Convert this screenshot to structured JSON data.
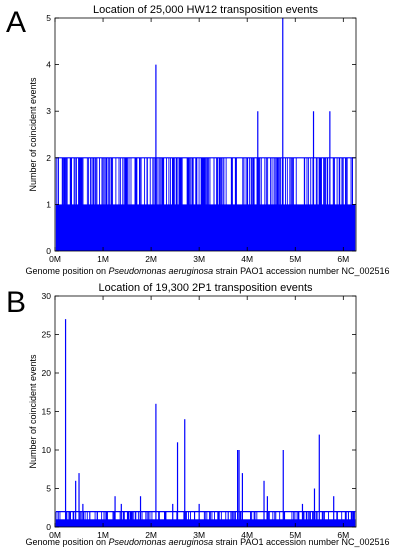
{
  "chart_data": [
    {
      "panel": "A",
      "type": "bar",
      "title": "Location of 25,000 HW12 transposition events",
      "xlabel_parts": [
        "Genome position on ",
        "Pseudomonas aeruginosa",
        " strain PAO1 accession number NC_002516"
      ],
      "ylabel": "Number of coincident events",
      "xlim": [
        0,
        6.264
      ],
      "ylim": [
        0,
        5
      ],
      "xticks": [
        0,
        1,
        2,
        3,
        4,
        5,
        6
      ],
      "xtick_labels": [
        "0M",
        "1M",
        "2M",
        "3M",
        "4M",
        "5M",
        "6M"
      ],
      "yticks": [
        0,
        1,
        2,
        3,
        4,
        5
      ],
      "baseline_fill": {
        "x": [
          0.02,
          6.25
        ],
        "y": 1
      },
      "peaks": [
        {
          "x": 2.1,
          "y": 4
        },
        {
          "x": 4.22,
          "y": 3
        },
        {
          "x": 4.74,
          "y": 5
        },
        {
          "x": 5.38,
          "y": 3
        },
        {
          "x": 5.72,
          "y": 3
        }
      ],
      "dense_level": {
        "y": 2,
        "x": [
          0.02,
          6.25
        ],
        "count": 260
      }
    },
    {
      "panel": "B",
      "type": "bar",
      "title": "Location of 19,300 2P1 transposition events",
      "xlabel_parts": [
        "Genome position on ",
        "Pseudomonas aeruginosa",
        " strain PAO1 accession number NC_002516"
      ],
      "ylabel": "Number of coincident events",
      "xlim": [
        0,
        6.264
      ],
      "ylim": [
        0,
        30
      ],
      "xticks": [
        0,
        1,
        2,
        3,
        4,
        5,
        6
      ],
      "xtick_labels": [
        "0M",
        "1M",
        "2M",
        "3M",
        "4M",
        "5M",
        "6M"
      ],
      "yticks": [
        0,
        5,
        10,
        15,
        20,
        25,
        30
      ],
      "baseline_fill": {
        "x": [
          0.02,
          6.25
        ],
        "y": 1
      },
      "peaks": [
        {
          "x": 0.22,
          "y": 27
        },
        {
          "x": 0.43,
          "y": 6
        },
        {
          "x": 0.5,
          "y": 7
        },
        {
          "x": 0.58,
          "y": 3
        },
        {
          "x": 1.25,
          "y": 4
        },
        {
          "x": 1.38,
          "y": 3
        },
        {
          "x": 1.78,
          "y": 4
        },
        {
          "x": 2.1,
          "y": 16
        },
        {
          "x": 2.45,
          "y": 3
        },
        {
          "x": 2.55,
          "y": 11
        },
        {
          "x": 2.7,
          "y": 14
        },
        {
          "x": 3.0,
          "y": 3
        },
        {
          "x": 3.8,
          "y": 10
        },
        {
          "x": 3.83,
          "y": 10
        },
        {
          "x": 3.9,
          "y": 7
        },
        {
          "x": 4.35,
          "y": 6
        },
        {
          "x": 4.42,
          "y": 4
        },
        {
          "x": 4.75,
          "y": 10
        },
        {
          "x": 5.15,
          "y": 3
        },
        {
          "x": 5.4,
          "y": 5
        },
        {
          "x": 5.5,
          "y": 12
        },
        {
          "x": 5.8,
          "y": 4
        }
      ],
      "dense_level": {
        "y": 2,
        "x": [
          0.02,
          6.25
        ],
        "count": 160
      }
    }
  ]
}
